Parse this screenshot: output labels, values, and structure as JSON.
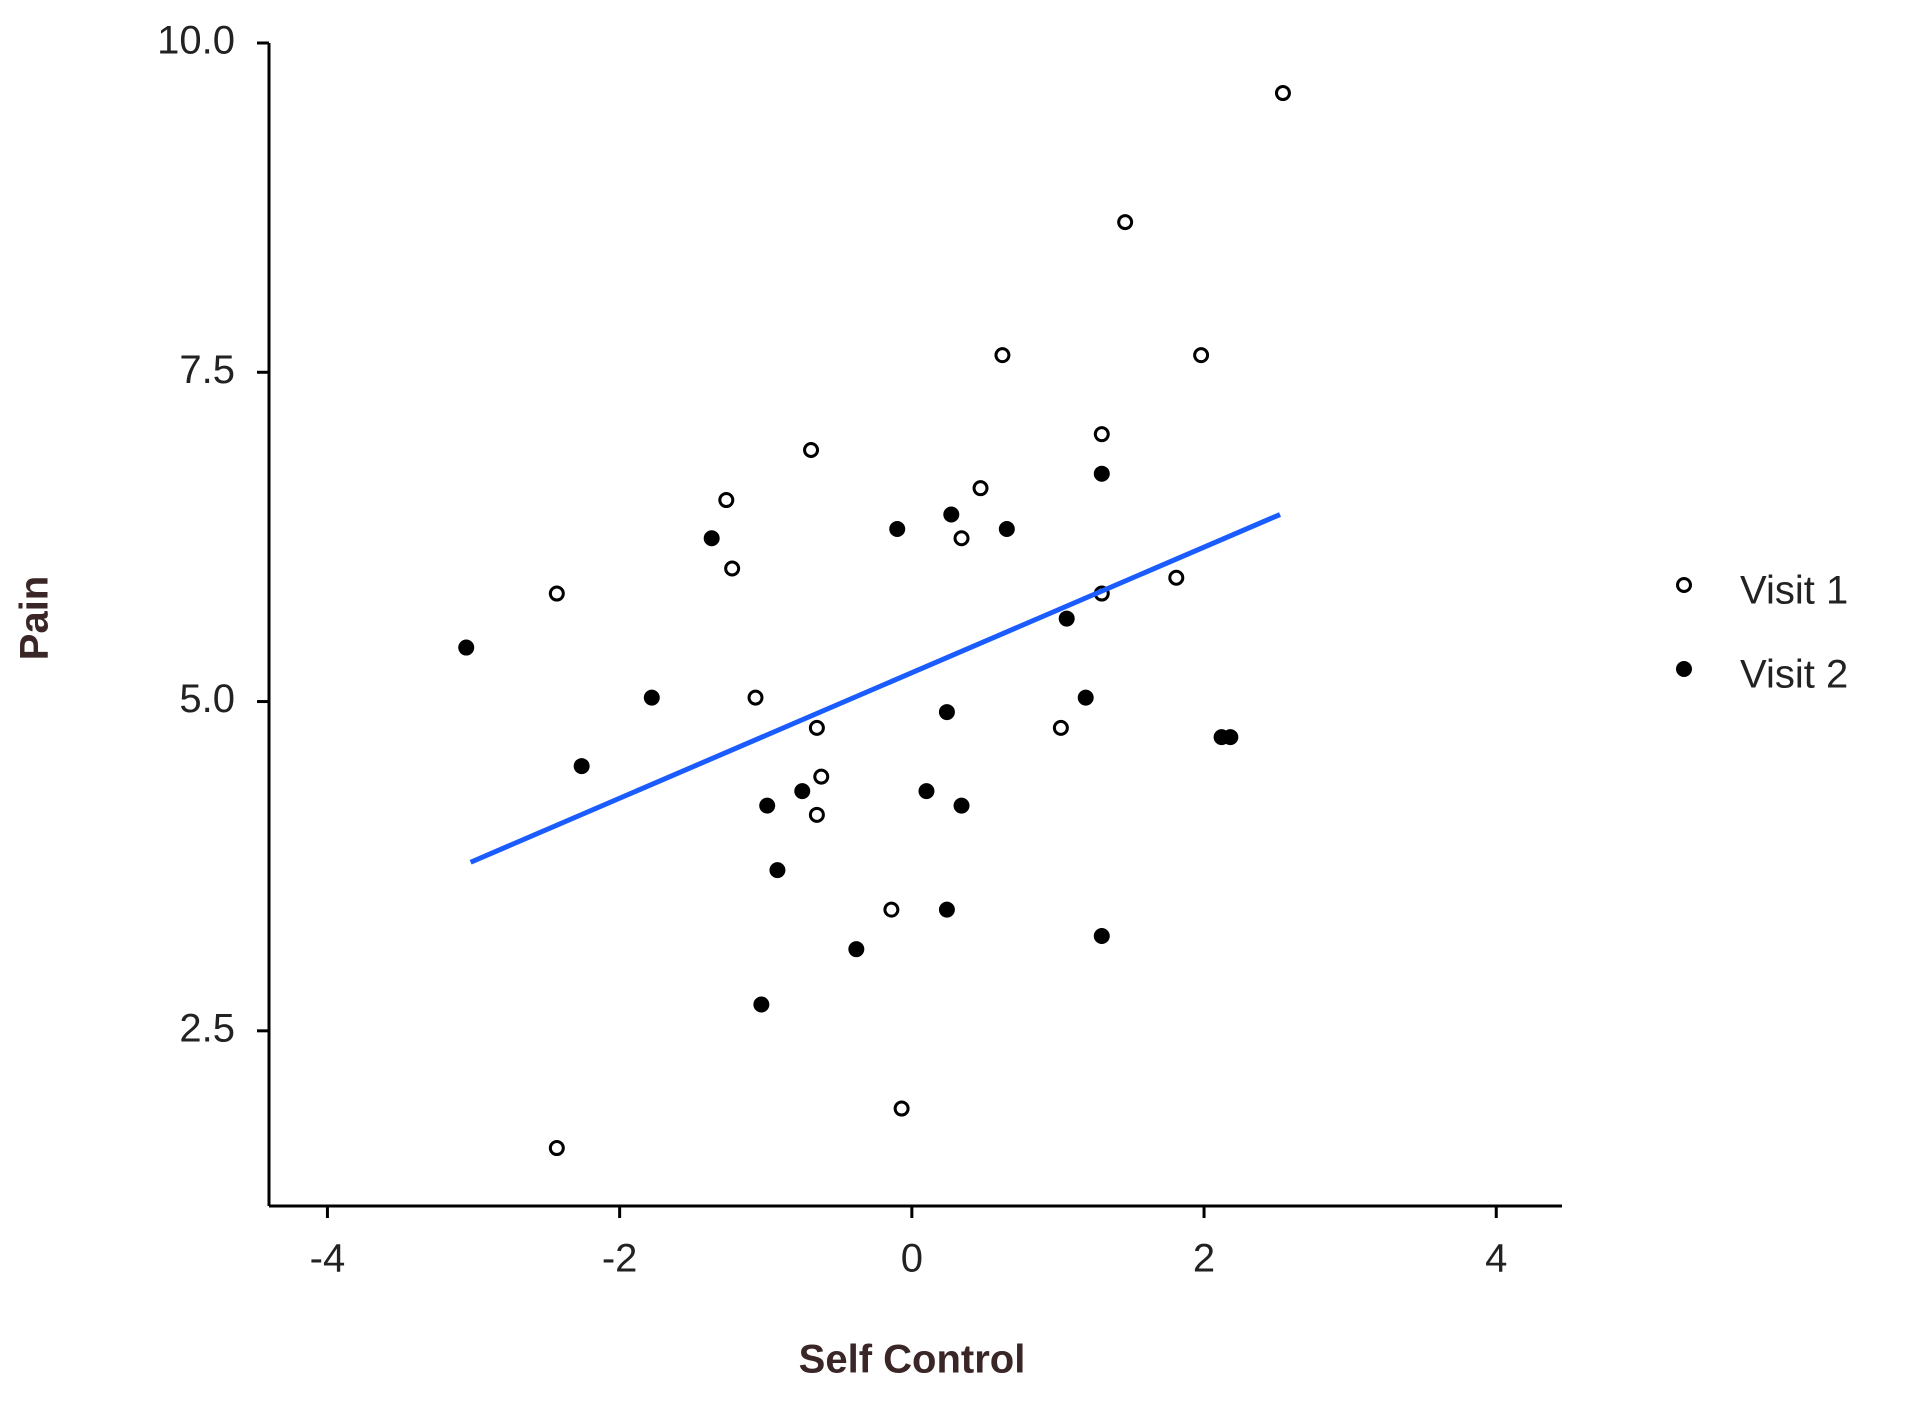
{
  "chart_data": {
    "type": "scatter",
    "x_label": "Self Control",
    "y_label": "Pain",
    "xlim": [
      -4.4,
      4.45
    ],
    "ylim": [
      1.17,
      10.0
    ],
    "xticks": [
      -4,
      -2,
      0,
      2,
      4
    ],
    "yticks": [
      {
        "value": 2.5,
        "label": "2.5"
      },
      {
        "value": 5.0,
        "label": "5.0"
      },
      {
        "value": 7.5,
        "label": "7.5"
      },
      {
        "value": 10.0,
        "label": "10.0"
      }
    ],
    "legend": "right",
    "series": [
      {
        "name": "Visit 1",
        "marker": "open",
        "color": "#000000",
        "x": [
          2.54,
          1.46,
          0.62,
          1.98,
          1.3,
          -0.69,
          0.47,
          -1.27,
          0.34,
          -1.23,
          -2.43,
          1.81,
          1.3,
          -1.07,
          -0.65,
          1.02,
          -0.62,
          -0.65,
          -0.14,
          -0.07,
          -2.43
        ],
        "values": [
          9.62,
          8.64,
          7.63,
          7.63,
          7.03,
          6.91,
          6.62,
          6.53,
          6.24,
          6.01,
          5.82,
          5.94,
          5.82,
          5.03,
          4.8,
          4.8,
          4.43,
          4.14,
          3.42,
          1.91,
          1.61
        ]
      },
      {
        "name": "Visit 2",
        "marker": "filled",
        "color": "#000000",
        "x": [
          -3.05,
          -1.37,
          -0.1,
          0.27,
          0.65,
          1.3,
          1.06,
          -1.78,
          -2.26,
          0.24,
          1.19,
          2.12,
          2.18,
          -0.99,
          -0.75,
          0.1,
          0.34,
          -0.92,
          0.24,
          -0.38,
          1.3,
          -1.03
        ],
        "values": [
          5.41,
          6.24,
          6.31,
          6.42,
          6.31,
          6.73,
          5.63,
          5.03,
          4.51,
          4.92,
          5.03,
          4.73,
          4.73,
          4.21,
          4.32,
          4.32,
          4.21,
          3.72,
          3.42,
          3.12,
          3.22,
          2.7
        ]
      }
    ],
    "trend_line": {
      "color": "#1a5cff",
      "x": [
        -3.02,
        2.52
      ],
      "y": [
        3.78,
        6.42
      ]
    }
  }
}
